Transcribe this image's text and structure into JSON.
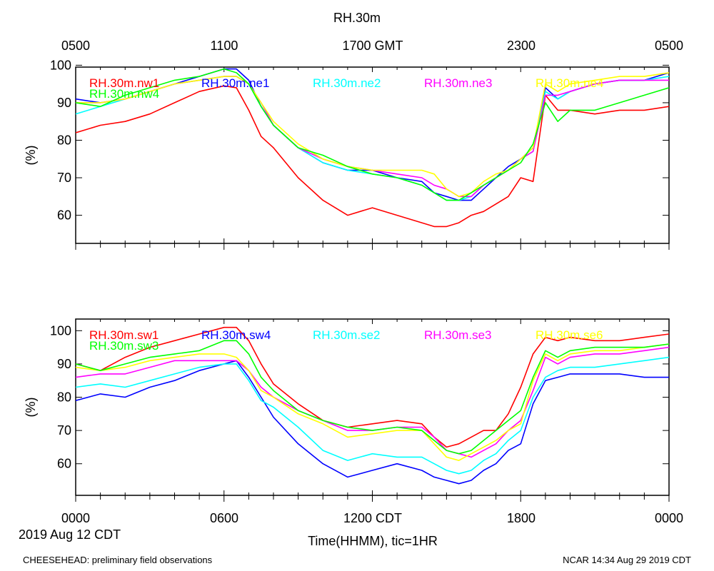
{
  "title": "RH.30m",
  "top_axis_labels": [
    "0500",
    "1100",
    "1700 GMT",
    "2300",
    "0500"
  ],
  "bottom_axis_labels": [
    "0000",
    "0600",
    "1200 CDT",
    "1800",
    "0000"
  ],
  "date_label": "2019 Aug 12 CDT",
  "xlabel": "Time(HHMM), tic=1HR",
  "footer_left": "CHEESEHEAD: preliminary field observations",
  "footer_right": "NCAR 14:34 Aug 29 2019 CDT",
  "chart_data": [
    {
      "type": "line",
      "name": "upper-panel",
      "ylabel": "(%)",
      "xlim": [
        0,
        24
      ],
      "ylim": [
        52.5,
        99.5
      ],
      "yticks": [
        60,
        70,
        80,
        90,
        100
      ],
      "x": [
        0,
        1,
        2,
        3,
        4,
        5,
        6,
        6.5,
        7,
        7.5,
        8,
        9,
        10,
        11,
        12,
        13,
        14,
        14.5,
        15,
        15.5,
        16,
        16.5,
        17,
        17.5,
        18,
        18.5,
        19,
        19.5,
        20,
        21,
        22,
        23,
        24
      ],
      "series": [
        {
          "name": "RH.30m.nw1",
          "color": "#ff0000",
          "values": [
            82,
            84,
            85,
            87,
            90,
            93,
            94.5,
            94,
            88,
            81,
            78,
            70,
            64,
            60,
            62,
            60,
            58,
            57,
            57,
            58,
            60,
            61,
            63,
            65,
            70,
            69,
            92,
            88,
            88,
            87,
            88,
            88,
            89
          ]
        },
        {
          "name": "RH.30m.ne1",
          "color": "#0000ff",
          "values": [
            91,
            90,
            91,
            93,
            95,
            97,
            99,
            99,
            96,
            89,
            84,
            78,
            74,
            72,
            72,
            70,
            69,
            66,
            65,
            64,
            64,
            67,
            70,
            73,
            75,
            78,
            94,
            91,
            93,
            95,
            96,
            96,
            98
          ]
        },
        {
          "name": "RH.30m.ne2",
          "color": "#00ffff",
          "values": [
            87,
            89,
            91,
            93,
            95,
            96,
            97,
            97,
            95,
            89,
            84,
            78,
            74,
            72,
            71,
            70,
            68,
            66,
            64,
            64,
            65,
            68,
            70,
            72,
            75,
            77,
            93,
            91,
            93,
            95,
            96,
            96,
            97
          ]
        },
        {
          "name": "RH.30m.ne3",
          "color": "#ff00ff",
          "values": [
            90,
            90,
            91,
            93,
            95,
            96,
            97,
            97,
            95,
            90,
            84,
            78,
            75,
            73,
            72,
            71,
            70,
            68,
            67,
            65,
            65,
            68,
            70,
            72,
            75,
            77,
            92,
            92,
            93,
            95,
            96,
            96,
            96
          ]
        },
        {
          "name": "RH.30m.ne4",
          "color": "#ffff00",
          "values": [
            90,
            90,
            91,
            93,
            95,
            96,
            97,
            97,
            95,
            90,
            85,
            79,
            75,
            73,
            72,
            72,
            72,
            71,
            67,
            65,
            66,
            69,
            71,
            72,
            75,
            78,
            95,
            93,
            95,
            96,
            97,
            97,
            98
          ]
        },
        {
          "name": "RH.30m.nw4",
          "color": "#00ff00",
          "values": [
            90,
            89,
            92,
            94,
            96,
            97,
            99,
            98,
            95,
            89,
            84,
            78,
            76,
            73,
            71,
            70,
            68,
            66,
            64,
            64,
            66,
            68,
            70,
            72,
            74,
            79,
            90,
            85,
            88,
            88,
            90,
            92,
            94
          ]
        }
      ]
    },
    {
      "type": "line",
      "name": "lower-panel",
      "ylabel": "(%)",
      "xlim": [
        0,
        24
      ],
      "ylim": [
        50.5,
        103.5
      ],
      "yticks": [
        60,
        70,
        80,
        90,
        100
      ],
      "x": [
        0,
        1,
        2,
        3,
        4,
        5,
        6,
        6.5,
        7,
        7.5,
        8,
        9,
        10,
        11,
        12,
        13,
        14,
        14.5,
        15,
        15.5,
        16,
        16.5,
        17,
        17.5,
        18,
        18.5,
        19,
        19.5,
        20,
        21,
        22,
        23,
        24
      ],
      "series": [
        {
          "name": "RH.30m.sw1",
          "color": "#ff0000",
          "values": [
            90,
            88,
            92,
            95,
            97,
            99,
            101,
            101,
            97,
            90,
            84,
            78,
            73,
            71,
            72,
            73,
            72,
            68,
            65,
            66,
            68,
            70,
            70,
            75,
            83,
            93,
            98,
            97,
            98,
            97,
            97,
            98,
            99
          ]
        },
        {
          "name": "RH.30m.sw4",
          "color": "#0000ff",
          "values": [
            79,
            81,
            80,
            83,
            85,
            88,
            90,
            91,
            86,
            80,
            74,
            66,
            60,
            56,
            58,
            60,
            58,
            56,
            55,
            54,
            55,
            58,
            60,
            64,
            66,
            78,
            85,
            86,
            87,
            87,
            87,
            86,
            86
          ]
        },
        {
          "name": "RH.30m.se2",
          "color": "#00ffff",
          "values": [
            83,
            84,
            83,
            85,
            87,
            89,
            90,
            90,
            85,
            79,
            77,
            71,
            64,
            61,
            63,
            62,
            62,
            60,
            58,
            57,
            58,
            61,
            63,
            67,
            70,
            80,
            86,
            88,
            89,
            89,
            90,
            91,
            92
          ]
        },
        {
          "name": "RH.30m.se3",
          "color": "#ff00ff",
          "values": [
            86,
            87,
            87,
            89,
            91,
            91,
            91,
            91,
            88,
            83,
            80,
            76,
            73,
            70,
            70,
            71,
            71,
            68,
            64,
            63,
            62,
            64,
            66,
            70,
            73,
            82,
            92,
            90,
            92,
            93,
            93,
            94,
            95
          ]
        },
        {
          "name": "RH.30m.se6",
          "color": "#ffff00",
          "values": [
            89,
            88,
            89,
            91,
            92,
            93,
            93,
            92,
            88,
            82,
            80,
            75,
            72,
            68,
            69,
            70,
            70,
            66,
            62,
            61,
            63,
            65,
            67,
            70,
            72,
            85,
            93,
            91,
            93,
            94,
            94,
            95,
            96
          ]
        },
        {
          "name": "RH.30m.sw3",
          "color": "#00ff00",
          "values": [
            90,
            88,
            90,
            92,
            93,
            94,
            97,
            97,
            93,
            86,
            82,
            76,
            73,
            71,
            70,
            71,
            70,
            67,
            64,
            63,
            64,
            67,
            70,
            73,
            76,
            86,
            94,
            92,
            94,
            95,
            95,
            95,
            96
          ]
        }
      ]
    }
  ]
}
